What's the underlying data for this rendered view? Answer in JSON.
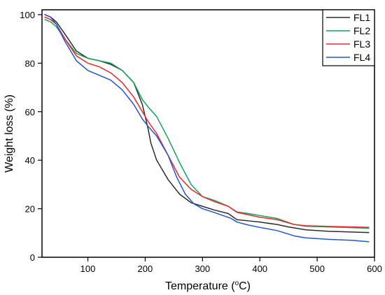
{
  "chart_data": {
    "type": "line",
    "title": "",
    "xlabel": "Temperature (",
    "xlabel_sup": "o",
    "xlabel_suffix": "C)",
    "ylabel": "Weight loss (%)",
    "xlim": [
      20,
      600
    ],
    "ylim": [
      0,
      102
    ],
    "x_ticks": [
      100,
      200,
      300,
      400,
      500,
      600
    ],
    "y_ticks": [
      0,
      20,
      40,
      60,
      80,
      100
    ],
    "x_tick_labels": [
      "100",
      "200",
      "300",
      "400",
      "500",
      "600"
    ],
    "y_tick_labels": [
      "0",
      "20",
      "40",
      "60",
      "80",
      "100"
    ],
    "grid": false,
    "legend_position": "top-right",
    "series": [
      {
        "name": "FL1",
        "color": "#2b2b2b",
        "points": [
          [
            25,
            100
          ],
          [
            35,
            99
          ],
          [
            45,
            97
          ],
          [
            60,
            92
          ],
          [
            80,
            85
          ],
          [
            100,
            82
          ],
          [
            120,
            81
          ],
          [
            140,
            79.5
          ],
          [
            160,
            77
          ],
          [
            180,
            72
          ],
          [
            195,
            63
          ],
          [
            205,
            53
          ],
          [
            210,
            47
          ],
          [
            220,
            40
          ],
          [
            240,
            32
          ],
          [
            260,
            26
          ],
          [
            280,
            22.5
          ],
          [
            300,
            21
          ],
          [
            320,
            19.5
          ],
          [
            345,
            18
          ],
          [
            360,
            15.5
          ],
          [
            380,
            15
          ],
          [
            400,
            14.5
          ],
          [
            430,
            13.5
          ],
          [
            450,
            12.5
          ],
          [
            480,
            11.3
          ],
          [
            520,
            10.7
          ],
          [
            560,
            10.4
          ],
          [
            590,
            10.2
          ]
        ]
      },
      {
        "name": "FL2",
        "color": "#16a05a",
        "points": [
          [
            25,
            98
          ],
          [
            35,
            97
          ],
          [
            45,
            95
          ],
          [
            60,
            90
          ],
          [
            80,
            84
          ],
          [
            100,
            82
          ],
          [
            120,
            81
          ],
          [
            140,
            80
          ],
          [
            160,
            77
          ],
          [
            180,
            72
          ],
          [
            195,
            65
          ],
          [
            205,
            62
          ],
          [
            220,
            58
          ],
          [
            240,
            49
          ],
          [
            260,
            39
          ],
          [
            280,
            30
          ],
          [
            300,
            25
          ],
          [
            320,
            23.5
          ],
          [
            345,
            21
          ],
          [
            360,
            18.7
          ],
          [
            380,
            18
          ],
          [
            400,
            17.2
          ],
          [
            430,
            16
          ],
          [
            460,
            13.5
          ],
          [
            480,
            12.8
          ],
          [
            520,
            12.5
          ],
          [
            560,
            12.2
          ],
          [
            590,
            12
          ]
        ]
      },
      {
        "name": "FL3",
        "color": "#e8292e",
        "points": [
          [
            25,
            99
          ],
          [
            35,
            98
          ],
          [
            45,
            96
          ],
          [
            60,
            90
          ],
          [
            80,
            83
          ],
          [
            100,
            80
          ],
          [
            120,
            78.5
          ],
          [
            140,
            76
          ],
          [
            160,
            72
          ],
          [
            180,
            66
          ],
          [
            195,
            60
          ],
          [
            205,
            56
          ],
          [
            220,
            51
          ],
          [
            240,
            42
          ],
          [
            260,
            33
          ],
          [
            280,
            28
          ],
          [
            300,
            25
          ],
          [
            320,
            23
          ],
          [
            345,
            21
          ],
          [
            360,
            18.5
          ],
          [
            380,
            17.5
          ],
          [
            400,
            16.5
          ],
          [
            430,
            15.5
          ],
          [
            460,
            13.5
          ],
          [
            480,
            13
          ],
          [
            520,
            12.7
          ],
          [
            560,
            12.5
          ],
          [
            590,
            12.3
          ]
        ]
      },
      {
        "name": "FL4",
        "color": "#2156c9",
        "points": [
          [
            25,
            100
          ],
          [
            35,
            99
          ],
          [
            45,
            96
          ],
          [
            60,
            89
          ],
          [
            80,
            81
          ],
          [
            100,
            77
          ],
          [
            120,
            75
          ],
          [
            140,
            73
          ],
          [
            160,
            69
          ],
          [
            180,
            63
          ],
          [
            195,
            57
          ],
          [
            205,
            54
          ],
          [
            220,
            50
          ],
          [
            240,
            42
          ],
          [
            255,
            33
          ],
          [
            270,
            26
          ],
          [
            285,
            22
          ],
          [
            300,
            20
          ],
          [
            320,
            18.5
          ],
          [
            350,
            16
          ],
          [
            360,
            14.5
          ],
          [
            380,
            13.3
          ],
          [
            400,
            12.3
          ],
          [
            430,
            11
          ],
          [
            460,
            8.8
          ],
          [
            480,
            8
          ],
          [
            520,
            7.4
          ],
          [
            560,
            7
          ],
          [
            590,
            6.4
          ]
        ]
      }
    ]
  }
}
